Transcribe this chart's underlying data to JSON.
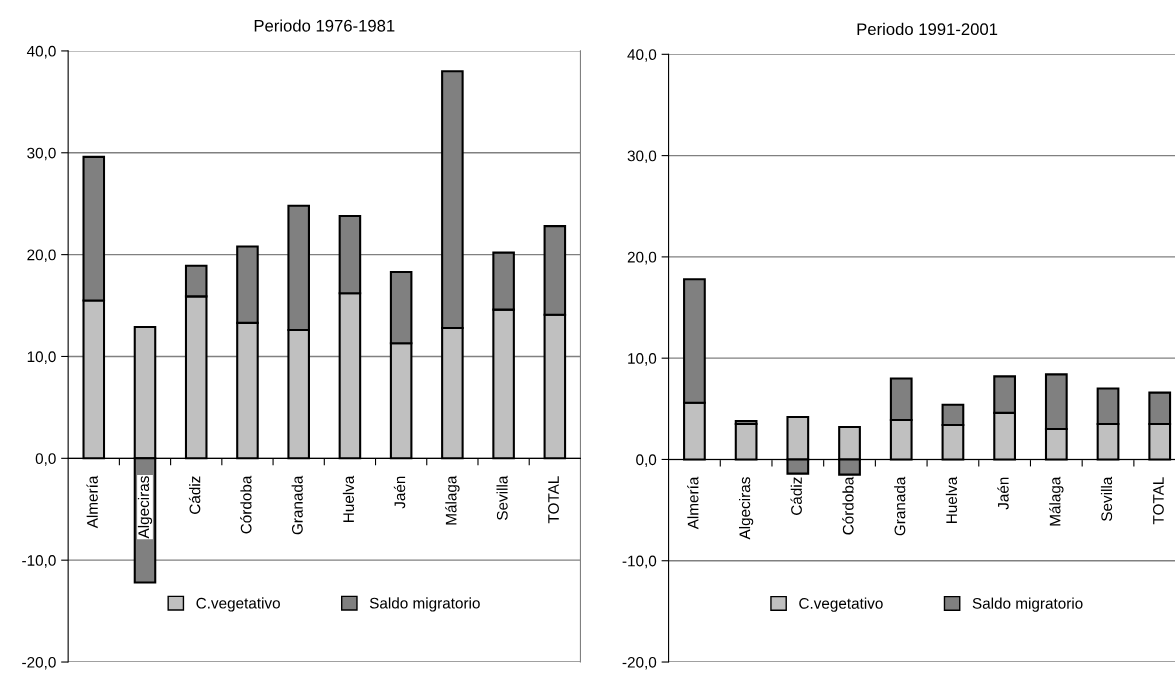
{
  "chart_data": [
    {
      "type": "bar",
      "title": "Periodo 1976-1981",
      "stacked": true,
      "grid": "y",
      "legend": "bottom",
      "categories": [
        "Almería",
        "Algeciras",
        "Cádiz",
        "Córdoba",
        "Granada",
        "Huelva",
        "Jaén",
        "Málaga",
        "Sevilla",
        "TOTAL"
      ],
      "series": [
        {
          "name": "C.vegetativo",
          "color": "#c0c0c0",
          "values": [
            15.5,
            12.9,
            15.9,
            13.3,
            12.6,
            16.2,
            11.3,
            12.8,
            14.6,
            14.1
          ]
        },
        {
          "name": "Saldo migratorio",
          "color": "#808080",
          "values": [
            14.1,
            -12.2,
            3.0,
            7.5,
            12.2,
            7.6,
            7.0,
            25.2,
            5.6,
            8.7
          ]
        }
      ],
      "ylim": [
        -20,
        40
      ],
      "yticks": [
        {
          "value": -20,
          "label": "-20,0"
        },
        {
          "value": -10,
          "label": "-10,0"
        },
        {
          "value": 0,
          "label": "0,0"
        },
        {
          "value": 10,
          "label": "10,0"
        },
        {
          "value": 20,
          "label": "20,0"
        },
        {
          "value": 30,
          "label": "30,0"
        },
        {
          "value": 40,
          "label": "40,0"
        }
      ]
    },
    {
      "type": "bar",
      "title": "Periodo 1991-2001",
      "stacked": true,
      "grid": "y",
      "legend": "bottom",
      "categories": [
        "Almería",
        "Algeciras",
        "Cádiz",
        "Córdoba",
        "Granada",
        "Huelva",
        "Jaén",
        "Málaga",
        "Sevilla",
        "TOTAL"
      ],
      "series": [
        {
          "name": "C.vegetativo",
          "color": "#c0c0c0",
          "values": [
            5.6,
            3.5,
            4.2,
            3.2,
            3.9,
            3.4,
            4.6,
            3.0,
            3.5,
            3.5
          ]
        },
        {
          "name": "Saldo migratorio",
          "color": "#808080",
          "values": [
            12.2,
            0.3,
            -1.4,
            -1.5,
            4.1,
            2.0,
            3.6,
            5.4,
            3.5,
            3.1
          ]
        }
      ],
      "ylim": [
        -20,
        40
      ],
      "yticks": [
        {
          "value": -20,
          "label": "-20,0"
        },
        {
          "value": -10,
          "label": "-10,0"
        },
        {
          "value": 0,
          "label": "0,0"
        },
        {
          "value": 10,
          "label": "10,0"
        },
        {
          "value": 20,
          "label": "20,0"
        },
        {
          "value": 30,
          "label": "30,0"
        },
        {
          "value": 40,
          "label": "40,0"
        }
      ]
    }
  ]
}
